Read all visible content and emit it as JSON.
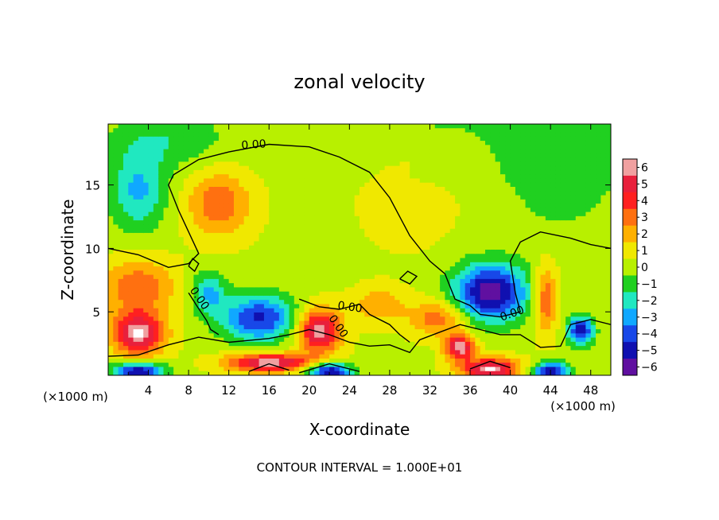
{
  "chart_data": {
    "type": "heatmap",
    "title": "zonal velocity",
    "xlabel": "X-coordinate",
    "ylabel": "Z-coordinate",
    "x_unit_left": "(×1000 m)",
    "x_unit_right": "(×1000 m)",
    "footer": "CONTOUR INTERVAL = 1.000E+01",
    "xlim": [
      0,
      50
    ],
    "ylim": [
      0,
      19.8
    ],
    "x_ticks": [
      4,
      8,
      12,
      16,
      20,
      24,
      28,
      32,
      36,
      40,
      44,
      48
    ],
    "x_tick_labels": [
      "4",
      "8",
      "12",
      "16",
      "20",
      "24",
      "28",
      "32",
      "36",
      "40",
      "44",
      "48"
    ],
    "y_ticks": [
      5,
      10,
      15
    ],
    "y_tick_labels": [
      "5",
      "10",
      "15"
    ],
    "contour_level_label": "0.00",
    "colorbar": {
      "levels": [
        6,
        5,
        4,
        3,
        2,
        1,
        0,
        -1,
        -2,
        -3,
        -4,
        -5,
        -6
      ],
      "labels": [
        "6",
        "5",
        "4",
        "3",
        "2",
        "1",
        "0",
        "−1",
        "−2",
        "−3",
        "−4",
        "−5",
        "−6"
      ],
      "colors": [
        "#f0a0a0",
        "#e8203c",
        "#ff2020",
        "#ff7010",
        "#ffb000",
        "#f0e800",
        "#b8f000",
        "#20d020",
        "#20e8c0",
        "#10a8ff",
        "#1848e8",
        "#1010b0",
        "#6010a0"
      ]
    },
    "features": [
      {
        "x": 11,
        "z": 13.5,
        "value": 3.0,
        "sx": 2.2,
        "sz": 1.8
      },
      {
        "x": 3,
        "z": 14.5,
        "value": -3.0,
        "sx": 2.0,
        "sz": 2.2
      },
      {
        "x": 38,
        "z": 6.5,
        "value": -6.5,
        "sx": 2.6,
        "sz": 1.6
      },
      {
        "x": 15,
        "z": 4.5,
        "value": -5.0,
        "sx": 2.6,
        "sz": 1.3
      },
      {
        "x": 10,
        "z": 6.5,
        "value": -3.0,
        "sx": 1.2,
        "sz": 1.2
      },
      {
        "x": 3,
        "z": 3.3,
        "value": 6.0,
        "sx": 1.8,
        "sz": 1.2
      },
      {
        "x": 21,
        "z": 3.5,
        "value": 6.0,
        "sx": 1.5,
        "sz": 1.2
      },
      {
        "x": 43.5,
        "z": 6.0,
        "value": 3.5,
        "sx": 0.8,
        "sz": 1.8
      },
      {
        "x": 47,
        "z": 3.5,
        "value": -5.5,
        "sx": 0.9,
        "sz": 0.8
      },
      {
        "x": 3,
        "z": 7.0,
        "value": 3.0,
        "sx": 2.5,
        "sz": 1.5
      },
      {
        "x": 35,
        "z": 2.2,
        "value": 6.0,
        "sx": 1.0,
        "sz": 0.7
      },
      {
        "x": 33,
        "z": 4.5,
        "value": 3.0,
        "sx": 2.0,
        "sz": 1.0
      },
      {
        "x": 27,
        "z": 5.5,
        "value": 2.0,
        "sx": 1.8,
        "sz": 1.0
      },
      {
        "x": 16,
        "z": 1.0,
        "value": 6.0,
        "sx": 3.0,
        "sz": 0.5
      },
      {
        "x": 3,
        "z": 0.3,
        "value": -6.0,
        "sx": 1.8,
        "sz": 0.5
      },
      {
        "x": 22,
        "z": 0.3,
        "value": -6.0,
        "sx": 1.5,
        "sz": 0.5
      },
      {
        "x": 38,
        "z": 0.5,
        "value": 6.0,
        "sx": 2.0,
        "sz": 0.6
      },
      {
        "x": 44,
        "z": 0.3,
        "value": -6.0,
        "sx": 1.2,
        "sz": 0.5
      },
      {
        "x": 30,
        "z": 13.5,
        "value": 0.5,
        "sx": 4.0,
        "sz": 3.0
      },
      {
        "x": 45,
        "z": 15.5,
        "value": -1.5,
        "sx": 4.0,
        "sz": 3.0
      },
      {
        "x": 6,
        "z": 18.5,
        "value": -1.5,
        "sx": 4.0,
        "sz": 1.5
      }
    ]
  }
}
